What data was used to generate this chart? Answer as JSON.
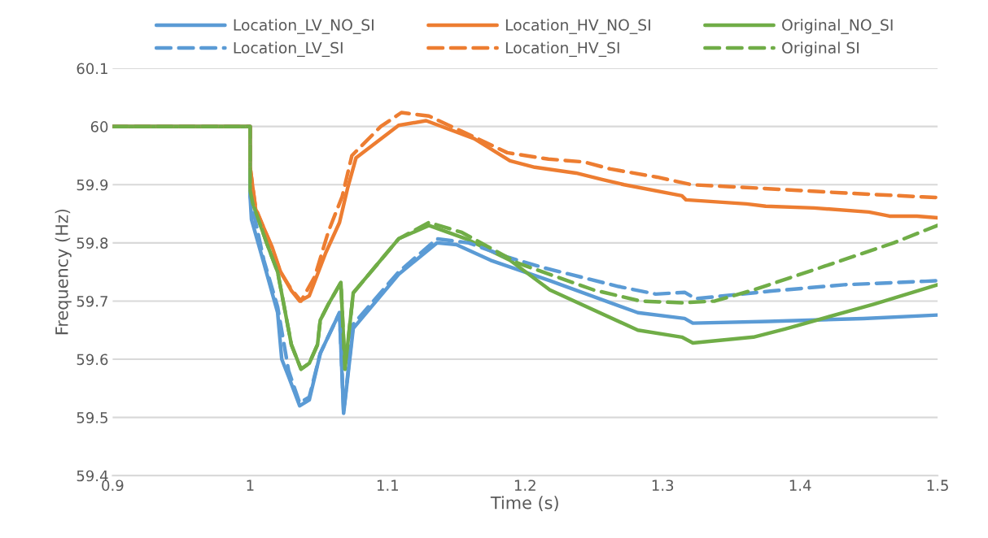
{
  "chart_data": {
    "type": "line",
    "xlabel": "Time (s)",
    "ylabel": "Frequency (Hz)",
    "xlim": [
      0.9,
      1.5
    ],
    "xticks": [
      {
        "value": 0.9,
        "label": "0.9"
      },
      {
        "value": 1.0,
        "label": "1"
      },
      {
        "value": 1.1,
        "label": "1.1"
      },
      {
        "value": 1.2,
        "label": "1.2"
      },
      {
        "value": 1.3,
        "label": "1.3"
      },
      {
        "value": 1.4,
        "label": "1.4"
      },
      {
        "value": 1.5,
        "label": "1.5"
      }
    ],
    "ylim": [
      59.4,
      60.1
    ],
    "yticks": [
      {
        "value": 59.4,
        "label": "59.4"
      },
      {
        "value": 59.5,
        "label": "59.5"
      },
      {
        "value": 59.6,
        "label": "59.6"
      },
      {
        "value": 59.7,
        "label": "59.7"
      },
      {
        "value": 59.8,
        "label": "59.8"
      },
      {
        "value": 59.9,
        "label": "59.9"
      },
      {
        "value": 60.0,
        "label": "60"
      },
      {
        "value": 60.1,
        "label": "60.1"
      }
    ],
    "grid": "y",
    "legend": "top",
    "marker": "none",
    "series": [
      {
        "name": "Location_LV_NO_SI",
        "color": "#5b9bd5",
        "line_style": "solid",
        "x": [
          0.9,
          1.0,
          1.0,
          1.001,
          1.01,
          1.02,
          1.023,
          1.028,
          1.036,
          1.043,
          1.051,
          1.065,
          1.068,
          1.075,
          1.108,
          1.136,
          1.15,
          1.175,
          1.218,
          1.282,
          1.316,
          1.322,
          1.377,
          1.446,
          1.5
        ],
        "values": [
          60.0,
          60.0,
          59.88,
          59.84,
          59.765,
          59.68,
          59.6,
          59.57,
          59.52,
          59.53,
          59.61,
          59.68,
          59.507,
          59.653,
          59.746,
          59.8,
          59.797,
          59.77,
          59.735,
          59.68,
          59.67,
          59.662,
          59.665,
          59.67,
          59.676
        ]
      },
      {
        "name": "Location_HV_NO_SI",
        "color": "#ed7d31",
        "line_style": "solid",
        "x": [
          0.9,
          1.0,
          1.0,
          1.004,
          1.016,
          1.022,
          1.03,
          1.036,
          1.043,
          1.055,
          1.065,
          1.071,
          1.077,
          1.108,
          1.128,
          1.163,
          1.189,
          1.207,
          1.237,
          1.256,
          1.272,
          1.314,
          1.317,
          1.361,
          1.375,
          1.41,
          1.45,
          1.465,
          1.485,
          1.5
        ],
        "values": [
          60.0,
          60.0,
          59.93,
          59.858,
          59.793,
          59.751,
          59.718,
          59.7,
          59.709,
          59.783,
          59.835,
          59.895,
          59.946,
          60.002,
          60.01,
          59.979,
          59.941,
          59.93,
          59.92,
          59.909,
          59.9,
          59.881,
          59.874,
          59.867,
          59.863,
          59.86,
          59.853,
          59.846,
          59.846,
          59.843
        ]
      },
      {
        "name": "Original_NO_SI",
        "color": "#70ad47",
        "line_style": "solid",
        "x": [
          0.9,
          1.0,
          1.0,
          1.002,
          1.012,
          1.02,
          1.024,
          1.03,
          1.037,
          1.043,
          1.049,
          1.051,
          1.057,
          1.066,
          1.069,
          1.075,
          1.108,
          1.13,
          1.157,
          1.189,
          1.218,
          1.282,
          1.314,
          1.322,
          1.366,
          1.389,
          1.454,
          1.5
        ],
        "values": [
          60.0,
          60.0,
          59.89,
          59.867,
          59.8,
          59.75,
          59.7,
          59.625,
          59.583,
          59.593,
          59.625,
          59.667,
          59.695,
          59.732,
          59.583,
          59.714,
          59.807,
          59.83,
          59.807,
          59.77,
          59.719,
          59.65,
          59.638,
          59.628,
          59.638,
          59.652,
          59.695,
          59.728
        ]
      },
      {
        "name": "Location_LV_SI",
        "color": "#5b9bd5",
        "line_style": "dashed",
        "x": [
          0.9,
          1.0,
          1.0,
          1.01,
          1.02,
          1.028,
          1.036,
          1.043,
          1.051,
          1.065,
          1.068,
          1.075,
          1.108,
          1.136,
          1.159,
          1.188,
          1.214,
          1.268,
          1.295,
          1.316,
          1.324,
          1.378,
          1.432,
          1.491,
          1.5
        ],
        "values": [
          60.0,
          60.0,
          59.88,
          59.77,
          59.69,
          59.58,
          59.525,
          59.535,
          59.61,
          59.68,
          59.51,
          59.66,
          59.75,
          59.807,
          59.8,
          59.775,
          59.757,
          59.725,
          59.712,
          59.715,
          59.704,
          59.717,
          59.728,
          59.734,
          59.735
        ]
      },
      {
        "name": "Location_HV_SI",
        "color": "#ed7d31",
        "line_style": "dashed",
        "x": [
          0.9,
          1.0,
          1.0,
          1.004,
          1.016,
          1.022,
          1.03,
          1.037,
          1.047,
          1.057,
          1.067,
          1.074,
          1.095,
          1.11,
          1.13,
          1.162,
          1.187,
          1.217,
          1.243,
          1.262,
          1.296,
          1.321,
          1.37,
          1.43,
          1.489,
          1.5
        ],
        "values": [
          60.0,
          60.0,
          59.93,
          59.86,
          59.79,
          59.75,
          59.72,
          59.7,
          59.742,
          59.82,
          59.88,
          59.95,
          60.0,
          60.024,
          60.018,
          59.983,
          59.955,
          59.944,
          59.939,
          59.927,
          59.913,
          59.9,
          59.894,
          59.886,
          59.879,
          59.878
        ]
      },
      {
        "name": "Original SI",
        "color": "#70ad47",
        "line_style": "dashed",
        "x": [
          0.9,
          1.0,
          1.0,
          1.002,
          1.012,
          1.02,
          1.024,
          1.03,
          1.037,
          1.043,
          1.049,
          1.051,
          1.057,
          1.066,
          1.069,
          1.075,
          1.108,
          1.13,
          1.154,
          1.195,
          1.25,
          1.284,
          1.314,
          1.338,
          1.366,
          1.418,
          1.468,
          1.5
        ],
        "values": [
          60.0,
          60.0,
          59.89,
          59.867,
          59.8,
          59.75,
          59.7,
          59.625,
          59.583,
          59.593,
          59.625,
          59.667,
          59.695,
          59.732,
          59.583,
          59.714,
          59.807,
          59.835,
          59.818,
          59.765,
          59.719,
          59.7,
          59.697,
          59.7,
          59.719,
          59.76,
          59.8,
          59.83
        ]
      }
    ]
  }
}
